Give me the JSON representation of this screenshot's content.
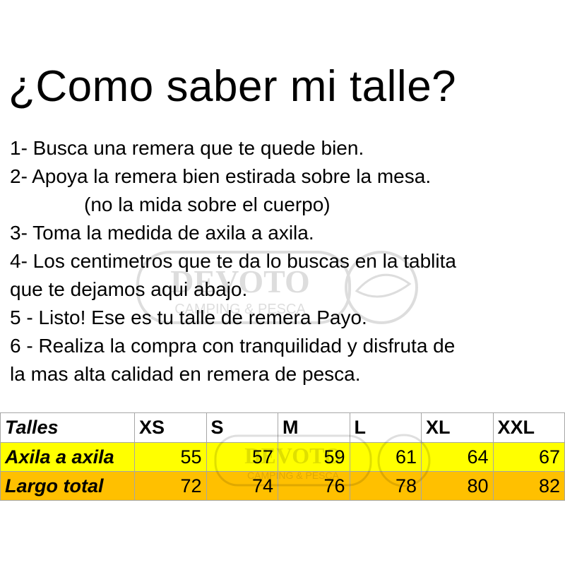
{
  "title": "¿Como saber mi talle?",
  "steps": [
    "1- Busca una remera que te quede bien.",
    "2- Apoya la remera bien estirada sobre la mesa.",
    "(no la mida sobre el cuerpo)",
    "3- Toma la medida de axila a axila.",
    "4- Los centimetros que te da lo buscas en la tablita",
    "que te dejamos aqui abajo.",
    "5 - Listo! Ese es tu talle de remera Payo.",
    "6 - Realiza la compra con tranquilidad y disfruta de",
    "la mas alta calidad en remera de pesca."
  ],
  "watermark": {
    "brand": "DEVOTO",
    "tagline": "CAMPING & PESCA"
  },
  "table": {
    "header_label": "Talles",
    "sizes": [
      "XS",
      "S",
      "M",
      "L",
      "XL",
      "XXL"
    ],
    "rows": [
      {
        "label": "Axila a axila",
        "values": [
          "55",
          "57",
          "59",
          "61",
          "64",
          "67"
        ],
        "color": "#ffff00"
      },
      {
        "label": "Largo total",
        "values": [
          "72",
          "74",
          "76",
          "78",
          "80",
          "82"
        ],
        "color": "#ffc000"
      }
    ]
  }
}
